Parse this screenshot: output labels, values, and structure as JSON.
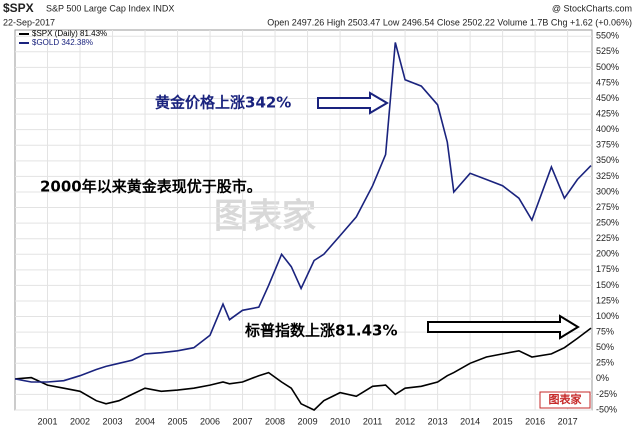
{
  "chart_data": {
    "type": "line",
    "symbol": "$SPX",
    "name": "S&P 500 Large Cap Index INDX",
    "source": "@ StockCharts.com",
    "date": "22-Sep-2017",
    "quote": "Open 2497.26 High 2503.47 Low 2496.54 Close 2502.22 Volume 1.7B Chg +1.62 (+0.06%)",
    "annotations": [
      "黄金价格上涨342%",
      "2000年以来黄金表现优于股市。",
      "标普指数上涨81.43%"
    ],
    "watermark": "图表家",
    "x": [
      2000.0,
      2000.5,
      2001.0,
      2001.5,
      2002.0,
      2002.5,
      2002.8,
      2003.2,
      2003.6,
      2004.0,
      2004.5,
      2005.0,
      2005.5,
      2006.0,
      2006.4,
      2006.6,
      2007.0,
      2007.5,
      2007.8,
      2008.2,
      2008.5,
      2008.8,
      2009.2,
      2009.5,
      2010.0,
      2010.5,
      2011.0,
      2011.4,
      2011.7,
      2012.0,
      2012.5,
      2013.0,
      2013.3,
      2013.5,
      2014.0,
      2014.5,
      2015.0,
      2015.5,
      2015.9,
      2016.5,
      2016.9,
      2017.3,
      2017.72
    ],
    "series": [
      {
        "name": "$SPX (Daily) 81.43%",
        "color": "#000000",
        "values": [
          0,
          2,
          -10,
          -15,
          -20,
          -35,
          -40,
          -35,
          -25,
          -15,
          -20,
          -18,
          -15,
          -10,
          -5,
          -8,
          -5,
          5,
          10,
          -5,
          -15,
          -40,
          -50,
          -35,
          -22,
          -28,
          -12,
          -10,
          -25,
          -15,
          -12,
          -5,
          5,
          10,
          25,
          35,
          40,
          45,
          35,
          40,
          50,
          65,
          81.43
        ]
      },
      {
        "name": "$GOLD 342.38%",
        "color": "#1a237e",
        "values": [
          0,
          -5,
          -5,
          -3,
          5,
          15,
          20,
          25,
          30,
          40,
          42,
          45,
          50,
          70,
          120,
          95,
          110,
          115,
          150,
          200,
          180,
          145,
          190,
          200,
          230,
          260,
          310,
          360,
          540,
          480,
          470,
          440,
          380,
          300,
          330,
          320,
          310,
          290,
          255,
          340,
          290,
          320,
          342.38
        ]
      }
    ],
    "xlim": [
      2000.0,
      2017.75
    ],
    "xticks": [
      2001,
      2002,
      2003,
      2004,
      2005,
      2006,
      2007,
      2008,
      2009,
      2010,
      2011,
      2012,
      2013,
      2014,
      2015,
      2016,
      2017
    ],
    "ylim": [
      -50,
      560
    ],
    "yticks": [
      {
        "value": -50,
        "label": "-50%"
      },
      {
        "value": -25,
        "label": "-25%"
      },
      {
        "value": 0,
        "label": "0%"
      },
      {
        "value": 25,
        "label": "25%"
      },
      {
        "value": 50,
        "label": "50%"
      },
      {
        "value": 75,
        "label": "75%"
      },
      {
        "value": 100,
        "label": "100%"
      },
      {
        "value": 125,
        "label": "125%"
      },
      {
        "value": 150,
        "label": "150%"
      },
      {
        "value": 175,
        "label": "175%"
      },
      {
        "value": 200,
        "label": "200%"
      },
      {
        "value": 225,
        "label": "225%"
      },
      {
        "value": 250,
        "label": "250%"
      },
      {
        "value": 275,
        "label": "275%"
      },
      {
        "value": 300,
        "label": "300%"
      },
      {
        "value": 325,
        "label": "325%"
      },
      {
        "value": 350,
        "label": "350%"
      },
      {
        "value": 375,
        "label": "375%"
      },
      {
        "value": 400,
        "label": "400%"
      },
      {
        "value": 425,
        "label": "425%"
      },
      {
        "value": 450,
        "label": "450%"
      },
      {
        "value": 475,
        "label": "475%"
      },
      {
        "value": 500,
        "label": "500%"
      },
      {
        "value": 525,
        "label": "525%"
      },
      {
        "value": 550,
        "label": "550%"
      }
    ],
    "grid": true
  }
}
